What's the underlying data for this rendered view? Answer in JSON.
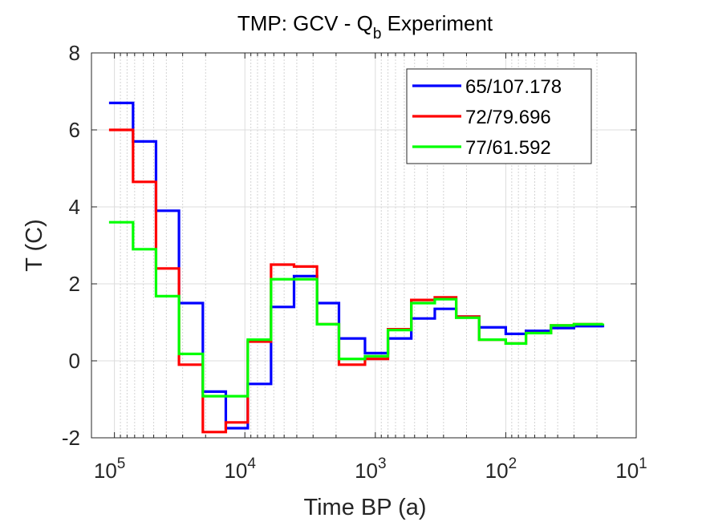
{
  "chart_data": {
    "type": "line",
    "line_style": "stairs",
    "title": {
      "main": "TMP: GCV - Q",
      "sub": "b",
      "suffix": " Experiment"
    },
    "xlabel": "Time BP (a)",
    "ylabel": "T (C)",
    "x_scale": "log",
    "x_reversed": true,
    "xlim": [
      10,
      150000
    ],
    "ylim": [
      -2,
      8
    ],
    "xticks": [
      {
        "value": 100000,
        "base": "10",
        "exp": "5"
      },
      {
        "value": 10000,
        "base": "10",
        "exp": "4"
      },
      {
        "value": 1000,
        "base": "10",
        "exp": "3"
      },
      {
        "value": 100,
        "base": "10",
        "exp": "2"
      },
      {
        "value": 10,
        "base": "10",
        "exp": "1"
      }
    ],
    "yticks": [
      {
        "value": 8,
        "label": "8"
      },
      {
        "value": 6,
        "label": "6"
      },
      {
        "value": 4,
        "label": "4"
      },
      {
        "value": 2,
        "label": "2"
      },
      {
        "value": 0,
        "label": "0"
      },
      {
        "value": -2,
        "label": "-2"
      }
    ],
    "grid": true,
    "legend_position": "top-right",
    "series": [
      {
        "name": "65/107.178",
        "color": "#0000ff",
        "x": [
          110000,
          72000,
          48000,
          32000,
          21000,
          14000,
          9500,
          6300,
          4200,
          2800,
          1900,
          1200,
          800,
          530,
          350,
          240,
          160,
          100,
          70,
          45,
          30,
          18
        ],
        "y": [
          6.7,
          5.7,
          3.9,
          1.5,
          -0.8,
          -1.75,
          -0.6,
          1.4,
          2.2,
          1.5,
          0.58,
          0.2,
          0.58,
          1.1,
          1.35,
          1.15,
          0.87,
          0.7,
          0.78,
          0.85,
          0.9,
          0.87
        ]
      },
      {
        "name": "72/79.696",
        "color": "#ff0000",
        "x": [
          110000,
          72000,
          48000,
          32000,
          21000,
          14000,
          9500,
          6300,
          4200,
          2800,
          1900,
          1200,
          800,
          530,
          350,
          240,
          160,
          100,
          70,
          45,
          30,
          18
        ],
        "y": [
          6.0,
          4.65,
          2.4,
          -0.1,
          -1.85,
          -1.6,
          0.5,
          2.5,
          2.45,
          0.95,
          -0.1,
          0.05,
          0.82,
          1.58,
          1.65,
          1.15,
          0.55,
          0.45,
          0.72,
          0.92,
          0.95,
          0.95
        ]
      },
      {
        "name": "77/61.592",
        "color": "#00ff00",
        "x": [
          110000,
          72000,
          48000,
          32000,
          21000,
          14000,
          9500,
          6300,
          4200,
          2800,
          1900,
          1200,
          800,
          530,
          350,
          240,
          160,
          100,
          70,
          45,
          30,
          18
        ],
        "y": [
          3.6,
          2.9,
          1.68,
          0.18,
          -0.92,
          -0.92,
          0.55,
          2.12,
          2.12,
          0.95,
          0.05,
          0.12,
          0.8,
          1.5,
          1.6,
          1.12,
          0.55,
          0.45,
          0.72,
          0.92,
          0.95,
          0.97
        ]
      }
    ]
  }
}
